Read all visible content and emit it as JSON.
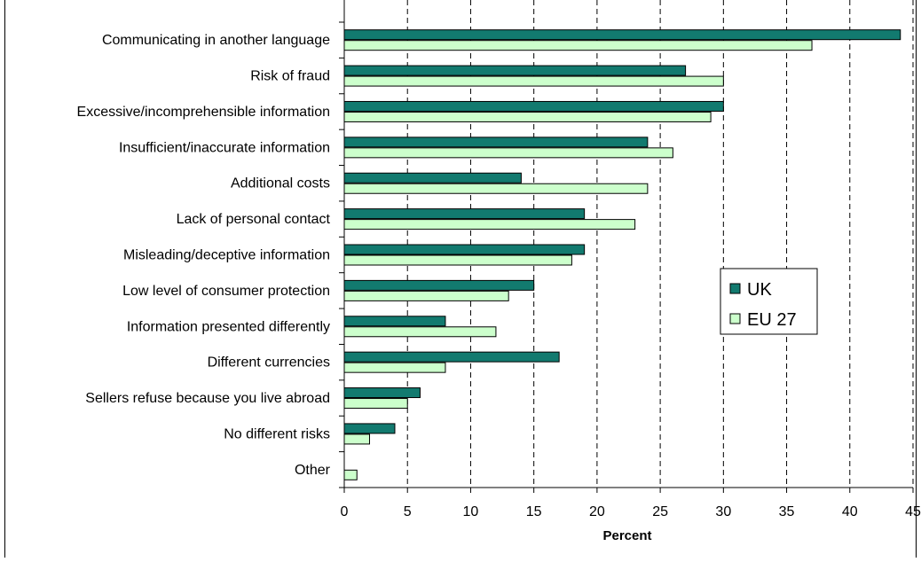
{
  "chart_data": {
    "type": "bar",
    "orientation": "horizontal",
    "title": "",
    "xlabel": "Percent",
    "ylabel": "",
    "xlim": [
      0,
      45
    ],
    "xticks": [
      0,
      5,
      10,
      15,
      20,
      25,
      30,
      35,
      40,
      45
    ],
    "grid": "vertical dashed",
    "legend_position": "right",
    "categories": [
      "Communicating in another language",
      "Risk of fraud",
      "Excessive/incomprehensible information",
      "Insufficient/inaccurate information",
      "Additional costs",
      "Lack of personal contact",
      "Misleading/deceptive information",
      "Low level of consumer protection",
      "Information presented differently",
      "Different currencies",
      "Sellers refuse because you live abroad",
      "No different risks",
      "Other"
    ],
    "series": [
      {
        "name": "UK",
        "color": "#127a6f",
        "values": [
          44,
          27,
          30,
          24,
          14,
          19,
          19,
          15,
          8,
          17,
          6,
          4,
          0
        ]
      },
      {
        "name": "EU 27",
        "color": "#ccffcc",
        "values": [
          37,
          30,
          29,
          26,
          24,
          23,
          18,
          13,
          12,
          8,
          5,
          2,
          1
        ]
      }
    ]
  }
}
